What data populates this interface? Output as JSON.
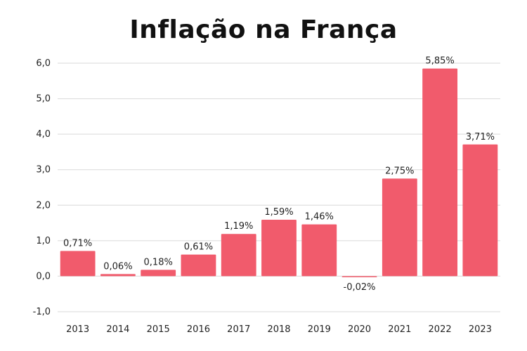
{
  "chart_data": {
    "type": "bar",
    "title": "Inflação na França",
    "categories": [
      "2013",
      "2014",
      "2015",
      "2016",
      "2017",
      "2018",
      "2019",
      "2020",
      "2021",
      "2022",
      "2023"
    ],
    "values": [
      0.71,
      0.06,
      0.18,
      0.61,
      1.19,
      1.59,
      1.46,
      -0.02,
      2.75,
      5.85,
      3.71
    ],
    "data_labels": [
      "0,71%",
      "0,06%",
      "0,18%",
      "0,61%",
      "1,19%",
      "1,59%",
      "1,46%",
      "-0,02%",
      "2,75%",
      "5,85%",
      "3,71%"
    ],
    "ylim": [
      -1.0,
      6.0
    ],
    "yticks": [
      -1.0,
      0.0,
      1.0,
      2.0,
      3.0,
      4.0,
      5.0,
      6.0
    ],
    "ytick_labels": [
      "-1,0",
      "0,0",
      "1,0",
      "2,0",
      "3,0",
      "4,0",
      "5,0",
      "6,0"
    ],
    "xlabel": "",
    "ylabel": "",
    "grid": true,
    "bar_color": "#f15b6c",
    "grid_color": "#d9d9d9"
  }
}
